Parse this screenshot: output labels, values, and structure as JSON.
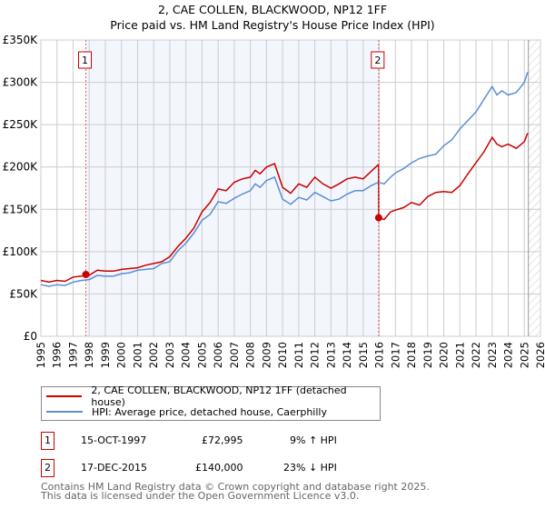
{
  "chart_data": {
    "type": "line",
    "title": "2, CAE COLLEN, BLACKWOOD, NP12 1FF",
    "subtitle": "Price paid vs. HM Land Registry's House Price Index (HPI)",
    "xlim": [
      1995,
      2026
    ],
    "ylim": [
      0,
      350000
    ],
    "x_ticks": [
      "1995",
      "1996",
      "1997",
      "1998",
      "1999",
      "2000",
      "2001",
      "2002",
      "2003",
      "2004",
      "2005",
      "2006",
      "2007",
      "2008",
      "2009",
      "2010",
      "2011",
      "2012",
      "2013",
      "2014",
      "2015",
      "2016",
      "2017",
      "2018",
      "2019",
      "2020",
      "2021",
      "2022",
      "2023",
      "2024",
      "2025",
      "2026"
    ],
    "y_ticks": [
      {
        "v": 0,
        "label": "£0"
      },
      {
        "v": 50000,
        "label": "£50K"
      },
      {
        "v": 100000,
        "label": "£100K"
      },
      {
        "v": 150000,
        "label": "£150K"
      },
      {
        "v": 200000,
        "label": "£200K"
      },
      {
        "v": 250000,
        "label": "£250K"
      },
      {
        "v": 300000,
        "label": "£300K"
      },
      {
        "v": 350000,
        "label": "£350K"
      }
    ],
    "grid": true,
    "shaded_range": [
      1997.79,
      2015.96
    ],
    "forecast_from": 2025.25,
    "series": [
      {
        "name": "2, CAE COLLEN, BLACKWOOD, NP12 1FF (detached house)",
        "color": "#cc0000",
        "x": [
          1995,
          1995.5,
          1996,
          1996.5,
          1997,
          1997.5,
          1997.79,
          1998,
          1998.5,
          1999,
          1999.5,
          2000,
          2000.5,
          2001,
          2001.5,
          2002,
          2002.5,
          2003,
          2003.5,
          2004,
          2004.5,
          2005,
          2005.5,
          2006,
          2006.5,
          2007,
          2007.5,
          2008,
          2008.3,
          2008.6,
          2009,
          2009.5,
          2010,
          2010.5,
          2011,
          2011.5,
          2012,
          2012.5,
          2013,
          2013.5,
          2014,
          2014.5,
          2015,
          2015.5,
          2015.95,
          2015.96,
          2016.3,
          2016.7,
          2017,
          2017.5,
          2018,
          2018.5,
          2019,
          2019.5,
          2020,
          2020.5,
          2021,
          2021.5,
          2022,
          2022.5,
          2023,
          2023.3,
          2023.6,
          2024,
          2024.5,
          2025,
          2025.2
        ],
        "y": [
          66000,
          64000,
          66000,
          65000,
          70000,
          71000,
          72995,
          72000,
          78000,
          77000,
          77000,
          79000,
          80000,
          81000,
          84000,
          86000,
          88000,
          94000,
          106000,
          116000,
          128000,
          147000,
          158000,
          174000,
          172000,
          182000,
          186000,
          188000,
          196000,
          192000,
          200000,
          204000,
          176000,
          169000,
          180000,
          176000,
          188000,
          180000,
          175000,
          180000,
          186000,
          188000,
          186000,
          195000,
          203000,
          140000,
          138000,
          147000,
          149000,
          152000,
          158000,
          155000,
          165000,
          170000,
          171000,
          170000,
          178000,
          192000,
          205000,
          218000,
          235000,
          227000,
          224000,
          227000,
          222000,
          230000,
          240000
        ]
      },
      {
        "name": "HPI: Average price, detached house, Caerphilly",
        "color": "#5b8fd4",
        "x": [
          1995,
          1995.5,
          1996,
          1996.5,
          1997,
          1997.5,
          1998,
          1998.5,
          1999,
          1999.5,
          2000,
          2000.5,
          2001,
          2001.5,
          2002,
          2002.5,
          2003,
          2003.5,
          2004,
          2004.5,
          2005,
          2005.5,
          2006,
          2006.5,
          2007,
          2007.5,
          2008,
          2008.3,
          2008.6,
          2009,
          2009.5,
          2010,
          2010.5,
          2011,
          2011.5,
          2012,
          2012.5,
          2013,
          2013.5,
          2014,
          2014.5,
          2015,
          2015.5,
          2015.95,
          2016.3,
          2016.7,
          2017,
          2017.5,
          2018,
          2018.5,
          2019,
          2019.5,
          2020,
          2020.5,
          2021,
          2021.5,
          2022,
          2022.5,
          2023,
          2023.3,
          2023.6,
          2024,
          2024.5,
          2025,
          2025.2
        ],
        "y": [
          61000,
          59000,
          61000,
          60000,
          64000,
          66000,
          67000,
          72000,
          71000,
          71000,
          74000,
          75000,
          78000,
          79000,
          80000,
          86000,
          88000,
          101000,
          110000,
          122000,
          137000,
          144000,
          159000,
          157000,
          163000,
          168000,
          172000,
          180000,
          176000,
          184000,
          188000,
          162000,
          156000,
          164000,
          161000,
          170000,
          165000,
          160000,
          162000,
          168000,
          172000,
          172000,
          178000,
          182000,
          180000,
          188000,
          193000,
          198000,
          205000,
          210000,
          213000,
          215000,
          225000,
          232000,
          245000,
          255000,
          265000,
          280000,
          295000,
          285000,
          290000,
          285000,
          288000,
          300000,
          312000
        ]
      }
    ],
    "annotations": [
      {
        "label": "1",
        "x": 1997.79,
        "y": 72995
      },
      {
        "label": "2",
        "x": 2015.96,
        "y": 140000
      }
    ]
  },
  "legend": [
    {
      "label": "2, CAE COLLEN, BLACKWOOD, NP12 1FF (detached house)",
      "color": "#cc0000"
    },
    {
      "label": "HPI: Average price, detached house, Caerphilly",
      "color": "#5b8fd4"
    }
  ],
  "transactions": [
    {
      "num": "1",
      "date": "15-OCT-1997",
      "price": "£72,995",
      "hpi": "9% ↑ HPI"
    },
    {
      "num": "2",
      "date": "17-DEC-2015",
      "price": "£140,000",
      "hpi": "23% ↓ HPI"
    }
  ],
  "footer": {
    "line1": "Contains HM Land Registry data © Crown copyright and database right 2025.",
    "line2": "This data is licensed under the Open Government Licence v3.0."
  }
}
